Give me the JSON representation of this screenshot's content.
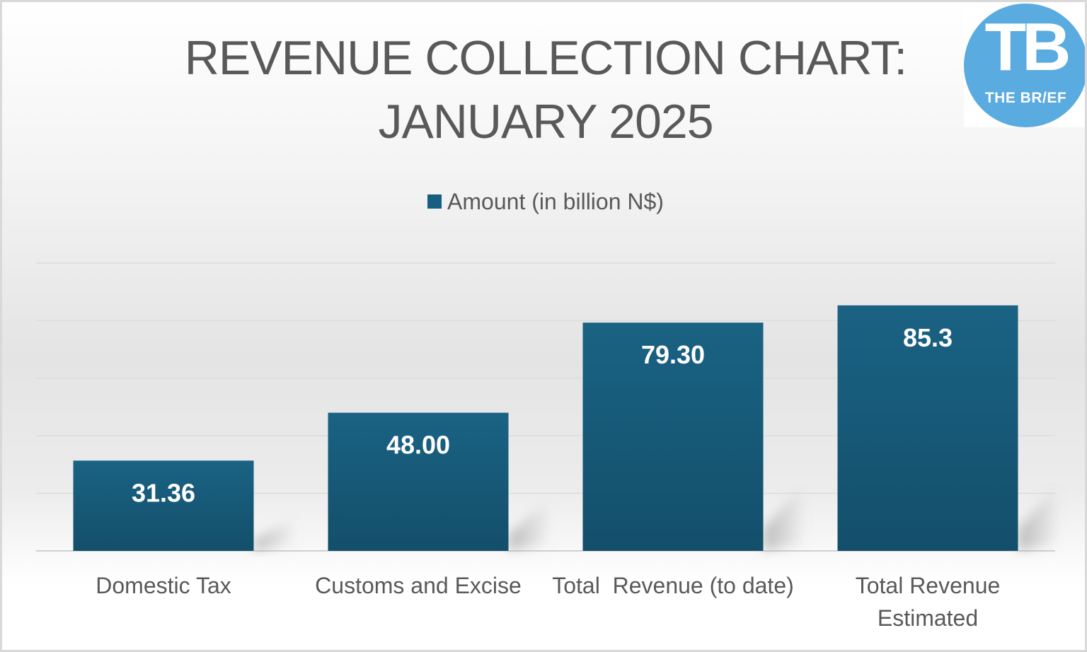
{
  "chart_data": {
    "type": "bar",
    "title": "REVENUE COLLECTION CHART: JANUARY 2025",
    "title_lines": [
      "REVENUE COLLECTION CHART:",
      "JANUARY 2025"
    ],
    "categories": [
      "Domestic Tax",
      "Customs and Excise",
      "Total  Revenue (to date)",
      "Total Revenue Estimated"
    ],
    "category_lines": [
      [
        "Domestic Tax"
      ],
      [
        "Customs and Excise"
      ],
      [
        "Total  Revenue (to date)"
      ],
      [
        "Total Revenue",
        "Estimated"
      ]
    ],
    "series": [
      {
        "name": "Amount (in billion N$)",
        "values": [
          31.36,
          48.0,
          79.3,
          85.3
        ],
        "labels": [
          "31.36",
          "48.00",
          "79.30",
          "85.3"
        ],
        "color": "#175f80"
      }
    ],
    "ylim": [
      0,
      100
    ],
    "grid": true,
    "legend_position": "top",
    "xlabel": "",
    "ylabel": ""
  },
  "logo": {
    "letters": "TB",
    "name": "THE BR/EF",
    "color": "#5aabe0"
  }
}
